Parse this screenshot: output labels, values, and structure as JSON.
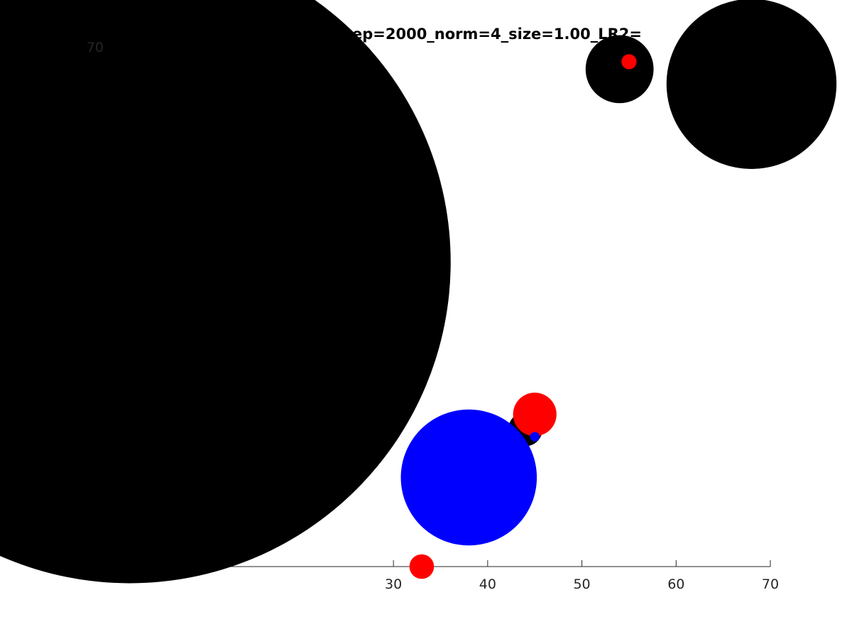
{
  "chart_data": {
    "type": "scatter",
    "title": "year_2010vs1970_small_ep=2000_norm=4_size=1.00_LR2=",
    "xlabel": "",
    "ylabel": "",
    "xlim": [
      0,
      70
    ],
    "ylim": [
      0,
      70
    ],
    "x_ticks": [
      "30",
      "40",
      "50",
      "60",
      "70"
    ],
    "y_ticks": [
      "70"
    ],
    "grid": false,
    "legend": "none",
    "colors": {
      "black": "#000000",
      "red": "#ff0000",
      "blue": "#0000ff"
    },
    "points": [
      {
        "x": 2,
        "y": 41,
        "size": 34,
        "color": "black"
      },
      {
        "x": 54,
        "y": 67,
        "size": 3.6,
        "color": "black"
      },
      {
        "x": 68,
        "y": 65,
        "size": 9,
        "color": "black"
      },
      {
        "x": 44,
        "y": 18.5,
        "size": 1.8,
        "color": "black"
      },
      {
        "x": 55,
        "y": 68,
        "size": 0.8,
        "color": "red"
      },
      {
        "x": 45,
        "y": 20.5,
        "size": 2.3,
        "color": "red"
      },
      {
        "x": 33,
        "y": 0,
        "size": 1.3,
        "color": "red"
      },
      {
        "x": 38,
        "y": 12,
        "size": 7.2,
        "color": "blue"
      },
      {
        "x": 45,
        "y": 17.5,
        "size": 0.5,
        "color": "blue"
      }
    ]
  }
}
